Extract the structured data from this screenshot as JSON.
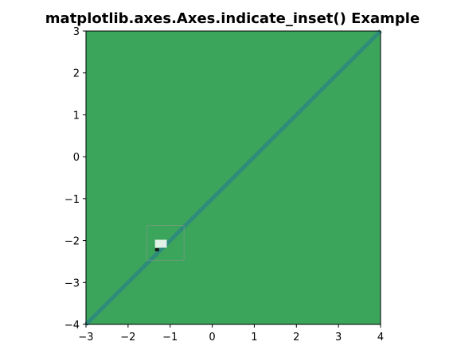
{
  "chart_data": {
    "type": "heatmap",
    "title": "matplotlib.axes.Axes.indicate_inset() Example",
    "xlabel": "",
    "ylabel": "",
    "xlim": [
      -3,
      4
    ],
    "ylim": [
      -4,
      3
    ],
    "xticks": [
      -3,
      -2,
      -1,
      0,
      1,
      2,
      3,
      4
    ],
    "yticks": [
      -4,
      -3,
      -2,
      -1,
      0,
      1,
      2,
      3
    ],
    "xtick_labels": [
      "−3",
      "−2",
      "−1",
      "0",
      "1",
      "2",
      "3",
      "4"
    ],
    "ytick_labels": [
      "−4",
      "−3",
      "−2",
      "−1",
      "0",
      "1",
      "2",
      "3"
    ],
    "grid": false,
    "background_color": "#3ba55c",
    "diagonal": {
      "from": [
        -3,
        -4
      ],
      "to": [
        4,
        3
      ],
      "color": "#2e8c7a"
    },
    "inset_region": {
      "x0": -1.55,
      "x1": -0.67,
      "y0": -2.47,
      "y1": -1.64,
      "edge_color": "#8a9a8a"
    },
    "inset_detail": {
      "x0": -1.36,
      "x1": -1.08,
      "y0": -2.17,
      "y1": -1.98,
      "color": "#ffffff"
    },
    "inset_marker": {
      "x": -1.32,
      "y": -2.22,
      "color": "#1a1a1a"
    }
  }
}
